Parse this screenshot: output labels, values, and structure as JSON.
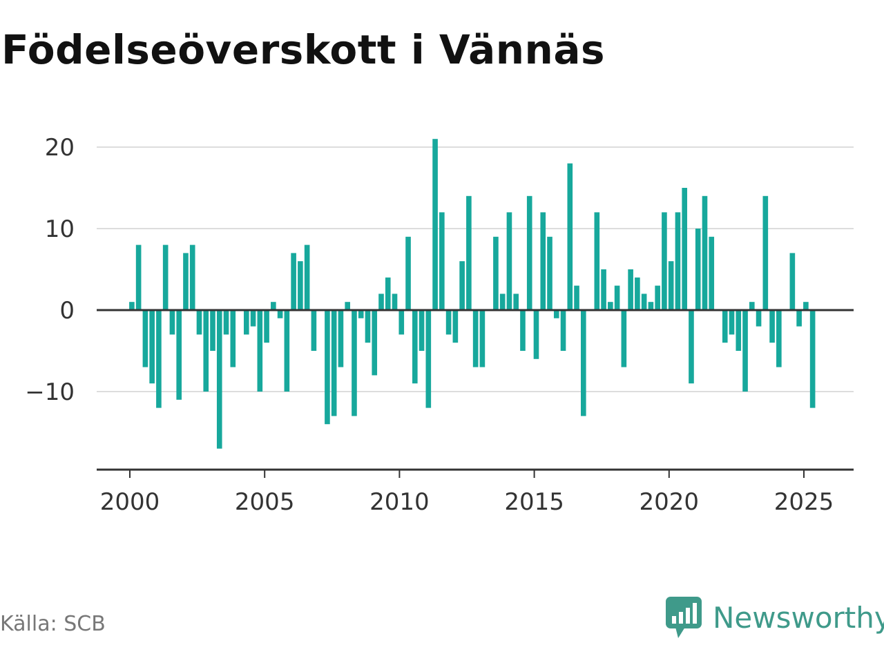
{
  "colors": {
    "bar": "#17a89c",
    "brand": "#3f9a8a",
    "grid": "#dddddd",
    "axis": "#333333"
  },
  "source_label": "Källa: SCB",
  "brand_name": "Newsworthy",
  "brand_icon": "newsworthy-logo-icon",
  "chart_data": {
    "type": "bar",
    "title": "Födelseöverskott i Vännäs",
    "xlabel": "",
    "ylabel": "",
    "ylim": [
      -19,
      21
    ],
    "xlim": [
      2000,
      2026.25
    ],
    "yticks": [
      20,
      10,
      0,
      -10
    ],
    "ytick_labels": [
      "20",
      "10",
      "0",
      "−10"
    ],
    "xticks": [
      2000,
      2005,
      2010,
      2015,
      2020,
      2025
    ],
    "xtick_labels": [
      "2000",
      "2005",
      "2010",
      "2015",
      "2020",
      "2025"
    ],
    "grid": true,
    "legend": "none",
    "period": "quarter",
    "start_year": 2000,
    "values": [
      1,
      8,
      -7,
      -9,
      -12,
      8,
      -3,
      -11,
      7,
      8,
      -3,
      -10,
      -5,
      -17,
      -3,
      -7,
      0,
      -3,
      -2,
      -10,
      -4,
      1,
      -1,
      -10,
      7,
      6,
      8,
      -5,
      0,
      -14,
      -13,
      -7,
      1,
      -13,
      -1,
      -4,
      -8,
      2,
      4,
      2,
      -3,
      9,
      -9,
      -5,
      -12,
      21,
      12,
      -3,
      -4,
      6,
      14,
      -7,
      -7,
      0,
      9,
      2,
      12,
      2,
      -5,
      14,
      -6,
      12,
      9,
      -1,
      -5,
      18,
      3,
      -13,
      0,
      12,
      5,
      1,
      3,
      -7,
      5,
      4,
      2,
      1,
      3,
      12,
      6,
      12,
      15,
      -9,
      10,
      14,
      9,
      0,
      -4,
      -3,
      -5,
      -10,
      1,
      -2,
      14,
      -4,
      -7,
      0,
      7,
      -2,
      1,
      -12
    ]
  }
}
